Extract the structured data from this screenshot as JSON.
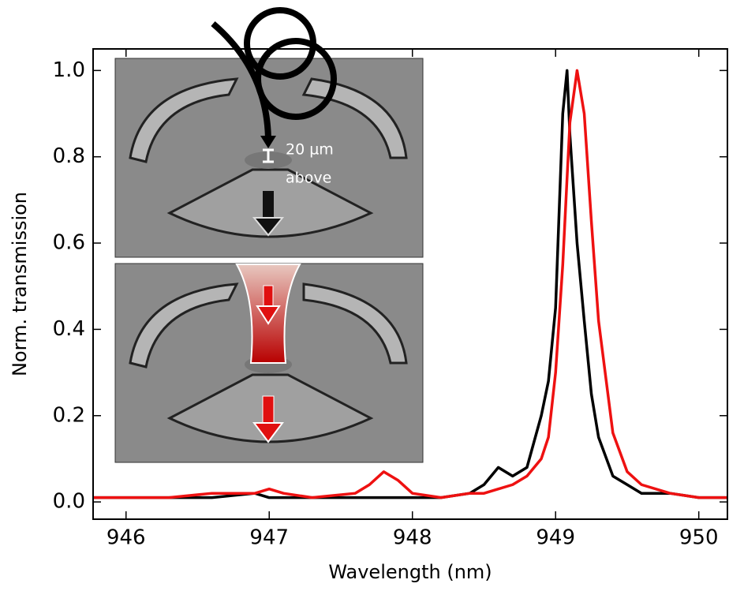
{
  "chart_data": {
    "type": "line",
    "xlabel": "Wavelength (nm)",
    "ylabel": "Norm. transmission",
    "annotations": [
      "20 µm",
      "above"
    ],
    "x": [
      945.77,
      946.0,
      946.3,
      946.6,
      946.9,
      947.0,
      947.1,
      947.3,
      947.6,
      947.7,
      947.8,
      947.9,
      948.0,
      948.2,
      948.4,
      948.5,
      948.6,
      948.7,
      948.8,
      948.9,
      948.95,
      949.0,
      949.05,
      949.08,
      949.1,
      949.15,
      949.2,
      949.25,
      949.3,
      949.4,
      949.5,
      949.6,
      949.8,
      950.0,
      950.2
    ],
    "series": [
      {
        "color": "#000000",
        "values": [
          0.01,
          0.01,
          0.01,
          0.01,
          0.02,
          0.01,
          0.01,
          0.01,
          0.01,
          0.01,
          0.01,
          0.01,
          0.01,
          0.01,
          0.02,
          0.04,
          0.08,
          0.06,
          0.08,
          0.2,
          0.28,
          0.45,
          0.9,
          1.0,
          0.85,
          0.6,
          0.42,
          0.25,
          0.15,
          0.06,
          0.04,
          0.02,
          0.02,
          0.01,
          0.01
        ]
      },
      {
        "color": "#ee1111",
        "values": [
          0.01,
          0.01,
          0.01,
          0.02,
          0.02,
          0.03,
          0.02,
          0.01,
          0.02,
          0.04,
          0.07,
          0.05,
          0.02,
          0.01,
          0.02,
          0.02,
          0.03,
          0.04,
          0.06,
          0.1,
          0.15,
          0.3,
          0.55,
          0.75,
          0.88,
          1.0,
          0.9,
          0.65,
          0.42,
          0.16,
          0.07,
          0.04,
          0.02,
          0.01,
          0.01
        ]
      }
    ],
    "xlim": [
      945.77,
      950.2
    ],
    "ylim": [
      -0.04,
      1.05
    ],
    "xticks": [
      946,
      947,
      948,
      949,
      950
    ],
    "yticks": [
      {
        "value": 0,
        "label": "0.0"
      },
      0.2,
      0.4,
      0.6,
      0.8,
      {
        "value": 1,
        "label": "1.0"
      }
    ]
  }
}
